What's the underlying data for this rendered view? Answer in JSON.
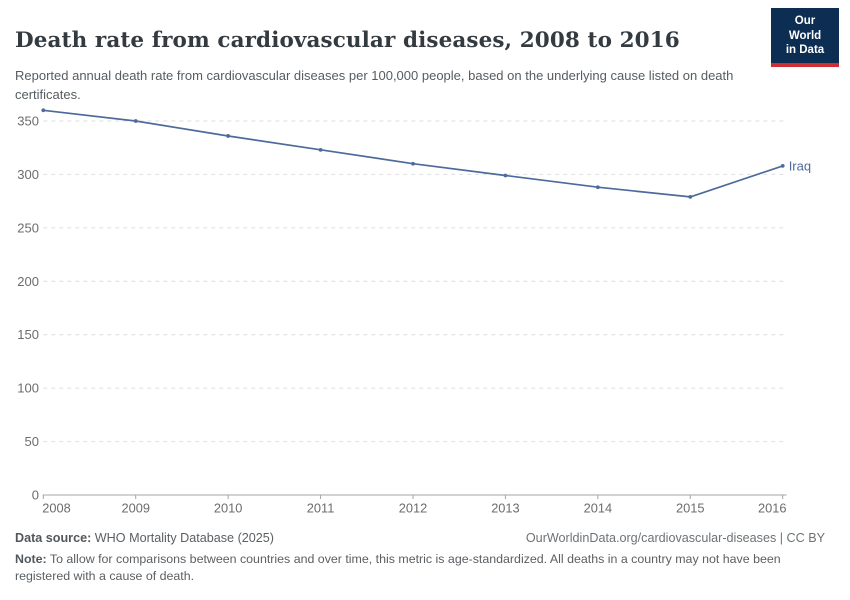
{
  "header": {
    "title": "Death rate from cardiovascular diseases, 2008 to 2016",
    "subtitle": "Reported annual death rate from cardiovascular diseases per 100,000 people, based on the underlying cause listed on death certificates.",
    "logo": {
      "line1": "Our World",
      "line2": "in Data"
    }
  },
  "chart_data": {
    "type": "line",
    "title": "Death rate from cardiovascular diseases, 2008 to 2016",
    "x": [
      2008,
      2009,
      2010,
      2011,
      2012,
      2013,
      2014,
      2015,
      2016
    ],
    "xticklabels": [
      "2008",
      "2009",
      "2010",
      "2011",
      "2012",
      "2013",
      "2014",
      "2015",
      "2016"
    ],
    "series": [
      {
        "name": "Iraq",
        "values": [
          360,
          350,
          336,
          323,
          310,
          299,
          288,
          279,
          308
        ],
        "color": "#4c6a9c"
      }
    ],
    "xlabel": "",
    "ylabel": "",
    "ylim": [
      0,
      374
    ],
    "yticks": [
      0,
      50,
      100,
      150,
      200,
      250,
      300,
      350
    ],
    "grid": "horizontal-dashed",
    "legend": "end-of-line-label"
  },
  "footer": {
    "datasource_label": "Data source:",
    "datasource_value": " WHO Mortality Database (2025)",
    "link": "OurWorldinData.org/cardiovascular-diseases | CC BY",
    "note_label": "Note:",
    "note_text": " To allow for comparisons between countries and over time, this metric is age-standardized. All deaths in a country may not have been registered with a cause of death."
  },
  "colors": {
    "line": "#4c6a9c",
    "grid": "#dcdee1",
    "axis": "#a5a5a5",
    "tick_label": "#6c6c6c",
    "logo_bg": "#0d2e53",
    "logo_red": "#d02e35",
    "title": "#343b40",
    "subtitle": "#565c60"
  }
}
